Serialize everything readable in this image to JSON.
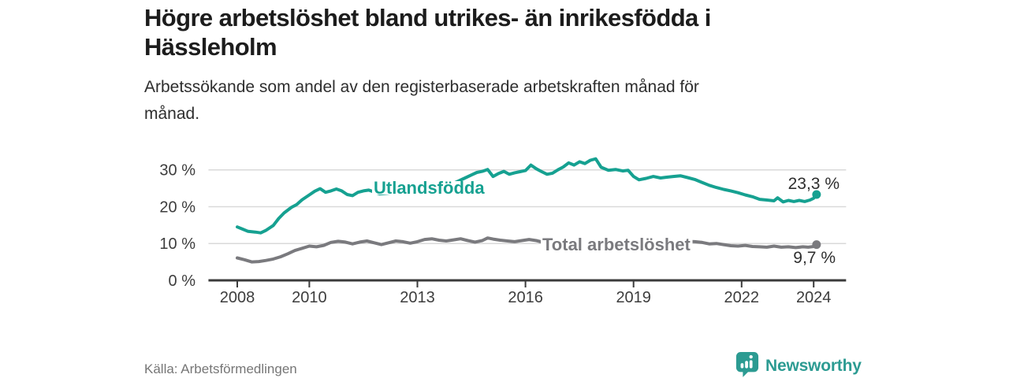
{
  "header": {
    "title_lines": [
      "Högre arbetslöshet bland utrikes- än inrikesfödda i",
      "Hässleholm"
    ],
    "subtitle_lines": [
      "Arbetssökande som andel av den registerbaserade arbetskraften månad för",
      "månad."
    ]
  },
  "footer": {
    "source": "Källa: Arbetsförmedlingen",
    "logo_text": "Newsworthy",
    "logo_icon": "newsworthy-speech-bubble-bar-chart-icon"
  },
  "colors": {
    "accent_teal": "#16A191",
    "line_gray": "#7A7A7E",
    "grid": "#D9D9D9",
    "axis": "#3B3B3B",
    "text_dark": "#1C1C1C",
    "text_body": "#2E2E2E",
    "text_muted": "#767676",
    "logo_teal": "#2C9B92"
  },
  "chart_data": {
    "type": "line",
    "title": "Högre arbetslöshet bland utrikes- än inrikesfödda i Hässleholm",
    "subtitle": "Arbetssökande som andel av den registerbaserade arbetskraften månad för månad.",
    "source": "Källa: Arbetsförmedlingen",
    "unit": "%",
    "grid": "horizontal",
    "legend_position": "inline-labels",
    "xlim": [
      2007.2,
      2024.9
    ],
    "ylim": [
      0,
      34
    ],
    "x_ticks": [
      {
        "year": 2008,
        "label": "2008"
      },
      {
        "year": 2010,
        "label": "2010"
      },
      {
        "year": 2013,
        "label": "2013"
      },
      {
        "year": 2016,
        "label": "2016"
      },
      {
        "year": 2019,
        "label": "2019"
      },
      {
        "year": 2022,
        "label": "2022"
      },
      {
        "year": 2024,
        "label": "2024"
      }
    ],
    "y_ticks": [
      {
        "value": 0,
        "label": "0 %"
      },
      {
        "value": 10,
        "label": "10 %"
      },
      {
        "value": 20,
        "label": "20 %"
      },
      {
        "value": 30,
        "label": "30 %"
      }
    ],
    "series": [
      {
        "name": "Utlandsfödda",
        "color": "#16A191",
        "end_value": 23.3,
        "end_label": "23,3 %",
        "points": [
          [
            2008.0,
            14.5
          ],
          [
            2008.15,
            13.9
          ],
          [
            2008.3,
            13.3
          ],
          [
            2008.5,
            13.1
          ],
          [
            2008.65,
            12.9
          ],
          [
            2008.8,
            13.6
          ],
          [
            2009.0,
            14.9
          ],
          [
            2009.15,
            16.8
          ],
          [
            2009.3,
            18.3
          ],
          [
            2009.5,
            19.8
          ],
          [
            2009.65,
            20.6
          ],
          [
            2009.8,
            21.9
          ],
          [
            2010.0,
            23.2
          ],
          [
            2010.15,
            24.2
          ],
          [
            2010.3,
            24.9
          ],
          [
            2010.45,
            23.9
          ],
          [
            2010.6,
            24.3
          ],
          [
            2010.75,
            24.8
          ],
          [
            2010.9,
            24.3
          ],
          [
            2011.05,
            23.3
          ],
          [
            2011.2,
            23.0
          ],
          [
            2011.35,
            23.9
          ],
          [
            2011.5,
            24.3
          ],
          [
            2011.65,
            24.5
          ],
          [
            2011.8,
            24.0
          ],
          [
            2011.95,
            23.5
          ],
          [
            2012.1,
            23.6
          ],
          [
            2012.3,
            23.8
          ],
          [
            2012.5,
            24.2
          ],
          [
            2012.7,
            24.0
          ],
          [
            2012.9,
            24.2
          ],
          [
            2013.1,
            24.6
          ],
          [
            2013.3,
            25.0
          ],
          [
            2013.5,
            25.1
          ],
          [
            2013.7,
            25.4
          ],
          [
            2013.9,
            25.9
          ],
          [
            2014.1,
            26.8
          ],
          [
            2014.3,
            27.7
          ],
          [
            2014.5,
            28.6
          ],
          [
            2014.65,
            29.3
          ],
          [
            2014.8,
            29.6
          ],
          [
            2014.95,
            30.1
          ],
          [
            2015.1,
            28.2
          ],
          [
            2015.25,
            29.0
          ],
          [
            2015.4,
            29.6
          ],
          [
            2015.55,
            28.8
          ],
          [
            2015.7,
            29.2
          ],
          [
            2015.85,
            29.5
          ],
          [
            2016.0,
            29.8
          ],
          [
            2016.15,
            31.3
          ],
          [
            2016.3,
            30.3
          ],
          [
            2016.45,
            29.5
          ],
          [
            2016.6,
            28.8
          ],
          [
            2016.75,
            29.1
          ],
          [
            2016.9,
            30.0
          ],
          [
            2017.05,
            30.8
          ],
          [
            2017.2,
            31.9
          ],
          [
            2017.35,
            31.3
          ],
          [
            2017.5,
            32.2
          ],
          [
            2017.65,
            31.7
          ],
          [
            2017.8,
            32.6
          ],
          [
            2017.95,
            33.0
          ],
          [
            2018.1,
            30.7
          ],
          [
            2018.3,
            29.9
          ],
          [
            2018.5,
            30.1
          ],
          [
            2018.7,
            29.7
          ],
          [
            2018.85,
            29.9
          ],
          [
            2019.0,
            28.2
          ],
          [
            2019.15,
            27.3
          ],
          [
            2019.35,
            27.7
          ],
          [
            2019.55,
            28.2
          ],
          [
            2019.75,
            27.8
          ],
          [
            2019.9,
            28.0
          ],
          [
            2020.1,
            28.2
          ],
          [
            2020.3,
            28.4
          ],
          [
            2020.5,
            27.9
          ],
          [
            2020.7,
            27.4
          ],
          [
            2020.9,
            26.6
          ],
          [
            2021.1,
            25.8
          ],
          [
            2021.3,
            25.2
          ],
          [
            2021.5,
            24.7
          ],
          [
            2021.7,
            24.3
          ],
          [
            2021.9,
            23.8
          ],
          [
            2022.1,
            23.2
          ],
          [
            2022.3,
            22.7
          ],
          [
            2022.5,
            22.0
          ],
          [
            2022.7,
            21.8
          ],
          [
            2022.9,
            21.6
          ],
          [
            2023.0,
            22.4
          ],
          [
            2023.15,
            21.3
          ],
          [
            2023.3,
            21.7
          ],
          [
            2023.45,
            21.4
          ],
          [
            2023.6,
            21.7
          ],
          [
            2023.75,
            21.4
          ],
          [
            2023.9,
            21.8
          ],
          [
            2024.0,
            22.3
          ],
          [
            2024.08,
            23.3
          ]
        ]
      },
      {
        "name": "Total arbetslöshet",
        "color": "#7A7A7E",
        "end_value": 9.7,
        "end_label": "9,7 %",
        "points": [
          [
            2008.0,
            6.1
          ],
          [
            2008.2,
            5.6
          ],
          [
            2008.4,
            5.0
          ],
          [
            2008.6,
            5.1
          ],
          [
            2008.8,
            5.4
          ],
          [
            2009.0,
            5.8
          ],
          [
            2009.2,
            6.4
          ],
          [
            2009.4,
            7.2
          ],
          [
            2009.6,
            8.1
          ],
          [
            2009.8,
            8.7
          ],
          [
            2010.0,
            9.3
          ],
          [
            2010.2,
            9.1
          ],
          [
            2010.4,
            9.5
          ],
          [
            2010.6,
            10.3
          ],
          [
            2010.8,
            10.6
          ],
          [
            2011.0,
            10.4
          ],
          [
            2011.2,
            9.9
          ],
          [
            2011.4,
            10.4
          ],
          [
            2011.6,
            10.7
          ],
          [
            2011.8,
            10.2
          ],
          [
            2012.0,
            9.7
          ],
          [
            2012.2,
            10.2
          ],
          [
            2012.4,
            10.7
          ],
          [
            2012.6,
            10.5
          ],
          [
            2012.8,
            10.1
          ],
          [
            2013.0,
            10.5
          ],
          [
            2013.2,
            11.1
          ],
          [
            2013.4,
            11.3
          ],
          [
            2013.6,
            10.9
          ],
          [
            2013.8,
            10.7
          ],
          [
            2014.0,
            11.0
          ],
          [
            2014.2,
            11.3
          ],
          [
            2014.4,
            10.8
          ],
          [
            2014.6,
            10.4
          ],
          [
            2014.8,
            10.8
          ],
          [
            2014.95,
            11.5
          ],
          [
            2015.1,
            11.2
          ],
          [
            2015.3,
            10.9
          ],
          [
            2015.5,
            10.7
          ],
          [
            2015.7,
            10.5
          ],
          [
            2015.9,
            10.8
          ],
          [
            2016.1,
            11.1
          ],
          [
            2016.3,
            10.8
          ],
          [
            2016.5,
            10.3
          ],
          [
            2016.65,
            9.7
          ],
          [
            2016.8,
            10.3
          ],
          [
            2017.0,
            10.9
          ],
          [
            2017.2,
            11.1
          ],
          [
            2017.4,
            10.8
          ],
          [
            2017.7,
            10.6
          ],
          [
            2018.0,
            10.4
          ],
          [
            2018.3,
            10.2
          ],
          [
            2018.6,
            10.0
          ],
          [
            2018.9,
            9.8
          ],
          [
            2019.2,
            9.7
          ],
          [
            2019.5,
            9.8
          ],
          [
            2019.8,
            10.0
          ],
          [
            2020.1,
            10.3
          ],
          [
            2020.4,
            10.6
          ],
          [
            2020.7,
            10.5
          ],
          [
            2020.9,
            10.3
          ],
          [
            2021.1,
            9.9
          ],
          [
            2021.3,
            10.0
          ],
          [
            2021.5,
            9.7
          ],
          [
            2021.7,
            9.4
          ],
          [
            2021.9,
            9.3
          ],
          [
            2022.1,
            9.5
          ],
          [
            2022.3,
            9.2
          ],
          [
            2022.5,
            9.1
          ],
          [
            2022.7,
            9.0
          ],
          [
            2022.9,
            9.3
          ],
          [
            2023.1,
            9.0
          ],
          [
            2023.3,
            9.1
          ],
          [
            2023.5,
            8.9
          ],
          [
            2023.7,
            9.1
          ],
          [
            2023.85,
            9.0
          ],
          [
            2024.0,
            9.2
          ],
          [
            2024.08,
            9.7
          ]
        ]
      }
    ]
  }
}
